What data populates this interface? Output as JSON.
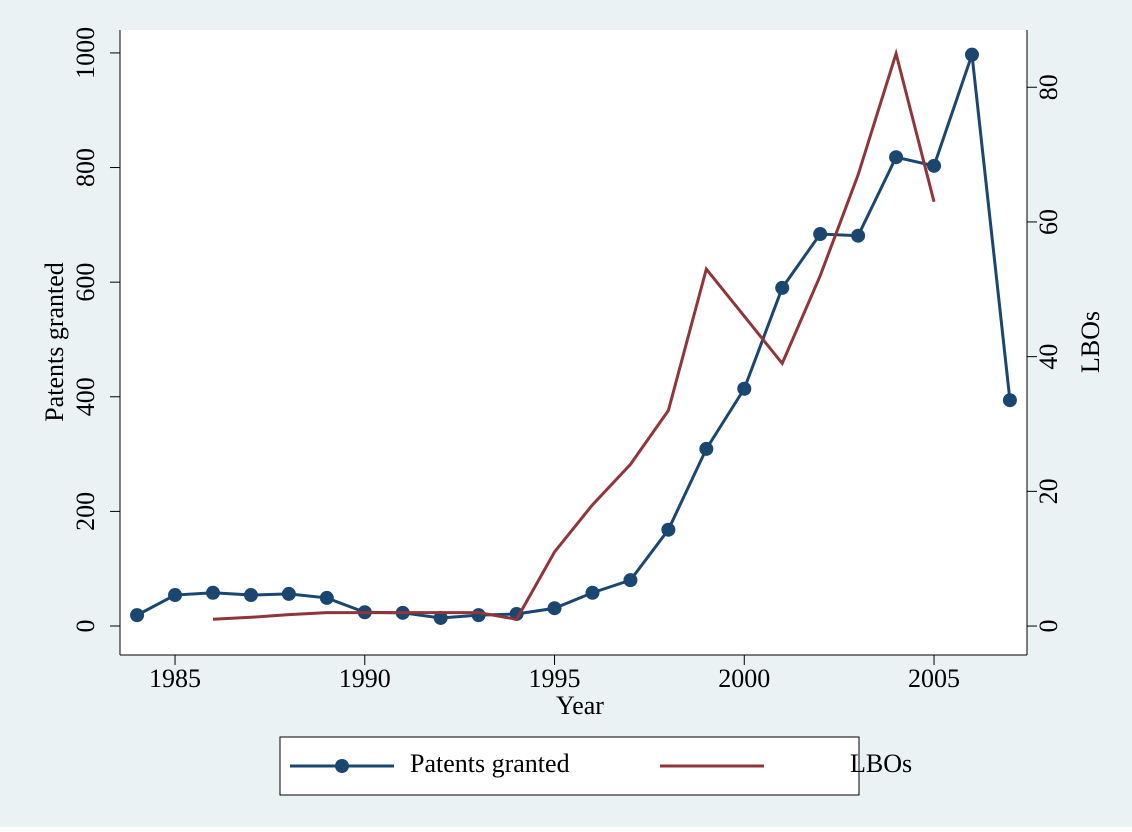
{
  "chart_data": {
    "type": "line",
    "x": [
      1984,
      1985,
      1986,
      1987,
      1988,
      1989,
      1990,
      1991,
      1992,
      1993,
      1994,
      1995,
      1996,
      1997,
      1998,
      1999,
      2000,
      2001,
      2002,
      2003,
      2004,
      2005,
      2006,
      2007
    ],
    "series": [
      {
        "name": "Patents granted",
        "color": "#1a476f",
        "markers": true,
        "values": [
          19,
          54,
          58,
          54,
          56,
          49,
          24,
          23,
          14,
          19,
          21,
          31,
          58,
          80,
          168,
          309,
          414,
          590,
          684,
          681,
          818,
          803,
          997,
          394
        ]
      },
      {
        "name": "LBOs",
        "color": "#90353b",
        "axis": "y2",
        "markers": false,
        "values": [
          null,
          null,
          1,
          1.3,
          1.7,
          2,
          2,
          2,
          2,
          2,
          1,
          11,
          18,
          24,
          32,
          53,
          46,
          39,
          52,
          67,
          85,
          63,
          null,
          null
        ]
      }
    ],
    "x_label": "Year",
    "y_label": "Patents granted",
    "y2_label": "LBOs",
    "xlim": [
      1983.55,
      2007.45
    ],
    "xticks": [
      1985,
      1990,
      1995,
      2000,
      2005
    ],
    "ylim": [
      -50.6,
      1040
    ],
    "yticks": [
      0,
      200,
      400,
      600,
      800,
      1000
    ],
    "y2lim": [
      -4.3,
      88.5
    ],
    "y2ticks": [
      0,
      20,
      40,
      60,
      80
    ],
    "grid": false,
    "legend": "bottom"
  }
}
